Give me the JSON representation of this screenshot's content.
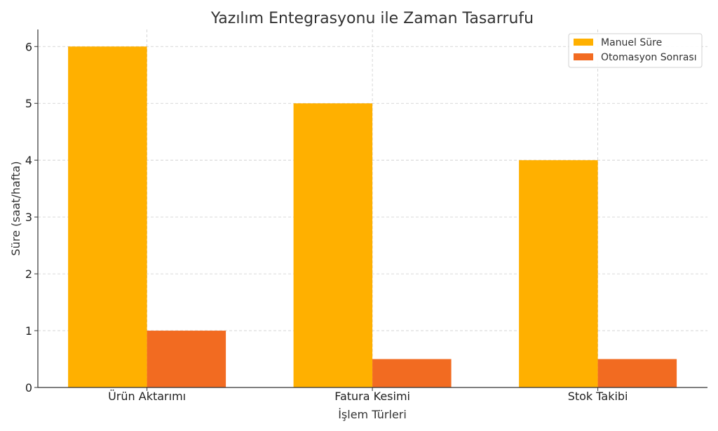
{
  "chart_data": {
    "type": "bar",
    "title": "Yazılım Entegrasyonu ile Zaman Tasarrufu",
    "xlabel": "İşlem Türleri",
    "ylabel": "Süre (saat/hafta)",
    "categories": [
      "Ürün Aktarımı",
      "Fatura Kesimi",
      "Stok Takibi"
    ],
    "series": [
      {
        "name": "Manuel Süre",
        "values": [
          6,
          5,
          4
        ],
        "color": "#ffb000"
      },
      {
        "name": "Otomasyon Sonrası",
        "values": [
          1,
          0.5,
          0.5
        ],
        "color": "#f26b21"
      }
    ],
    "ylim": [
      0,
      6.3
    ],
    "yticks": [
      0,
      1,
      2,
      3,
      4,
      5,
      6
    ],
    "grid": true,
    "legend_position": "top-right"
  }
}
